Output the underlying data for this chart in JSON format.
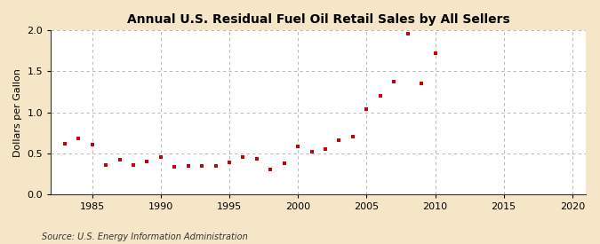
{
  "title": "Annual U.S. Residual Fuel Oil Retail Sales by All Sellers",
  "ylabel": "Dollars per Gallon",
  "source": "Source: U.S. Energy Information Administration",
  "background_color": "#f5e6c8",
  "plot_background": "#ffffff",
  "marker_color": "#cc0000",
  "xlim": [
    1982,
    2021
  ],
  "ylim": [
    0.0,
    2.0
  ],
  "xticks": [
    1985,
    1990,
    1995,
    2000,
    2005,
    2010,
    2015,
    2020
  ],
  "yticks": [
    0.0,
    0.5,
    1.0,
    1.5,
    2.0
  ],
  "years": [
    1983,
    1984,
    1985,
    1986,
    1987,
    1988,
    1989,
    1990,
    1991,
    1992,
    1993,
    1994,
    1995,
    1996,
    1997,
    1998,
    1999,
    2000,
    2001,
    2002,
    2003,
    2004,
    2005,
    2006,
    2007,
    2008,
    2009,
    2010
  ],
  "values": [
    0.62,
    0.68,
    0.61,
    0.36,
    0.42,
    0.36,
    0.4,
    0.46,
    0.34,
    0.35,
    0.35,
    0.35,
    0.39,
    0.45,
    0.43,
    0.3,
    0.38,
    0.59,
    0.52,
    0.55,
    0.66,
    0.7,
    1.04,
    1.2,
    1.38,
    1.96,
    1.35,
    1.72
  ],
  "title_fontsize": 10,
  "ylabel_fontsize": 8,
  "tick_fontsize": 8,
  "source_fontsize": 7
}
